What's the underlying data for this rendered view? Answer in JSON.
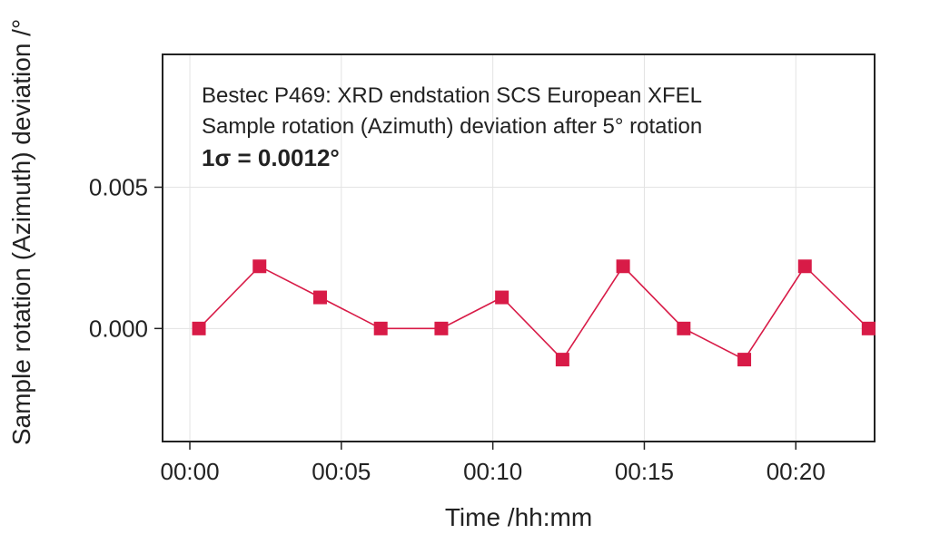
{
  "colors": {
    "series": "#d81b47",
    "grid": "#e3e3e3",
    "frame": "#222222",
    "text": "#222222"
  },
  "chart_data": {
    "type": "line",
    "title": "",
    "xlabel": "Time /hh:mm",
    "ylabel": "Sample rotation (Azimuth) deviation /°",
    "annotations": [
      "Bestec P469: XRD endstation SCS European XFEL",
      "Sample rotation (Azimuth) deviation after 5° rotation",
      "1σ = 0.0012°"
    ],
    "x_unit": "minutes",
    "x_ticks": [
      0,
      5,
      10,
      15,
      20
    ],
    "x_tick_labels": [
      "00:00",
      "00:05",
      "00:10",
      "00:15",
      "00:20"
    ],
    "y_ticks": [
      0.0,
      0.005
    ],
    "y_tick_labels": [
      "0.000",
      "0.005"
    ],
    "xlim": [
      -0.9,
      22.6
    ],
    "ylim": [
      -0.004,
      0.0097
    ],
    "grid": true,
    "legend": "none",
    "marker": "square",
    "series": [
      {
        "x": [
          0.3,
          2.3,
          4.3,
          6.3,
          8.3,
          10.3,
          12.3,
          14.3,
          16.3,
          18.3,
          20.3,
          22.4
        ],
        "y": [
          0.0,
          0.0022,
          0.0011,
          0.0,
          0.0,
          0.0011,
          -0.0011,
          0.0022,
          0.0,
          -0.0011,
          0.0022,
          0.0
        ]
      }
    ]
  }
}
